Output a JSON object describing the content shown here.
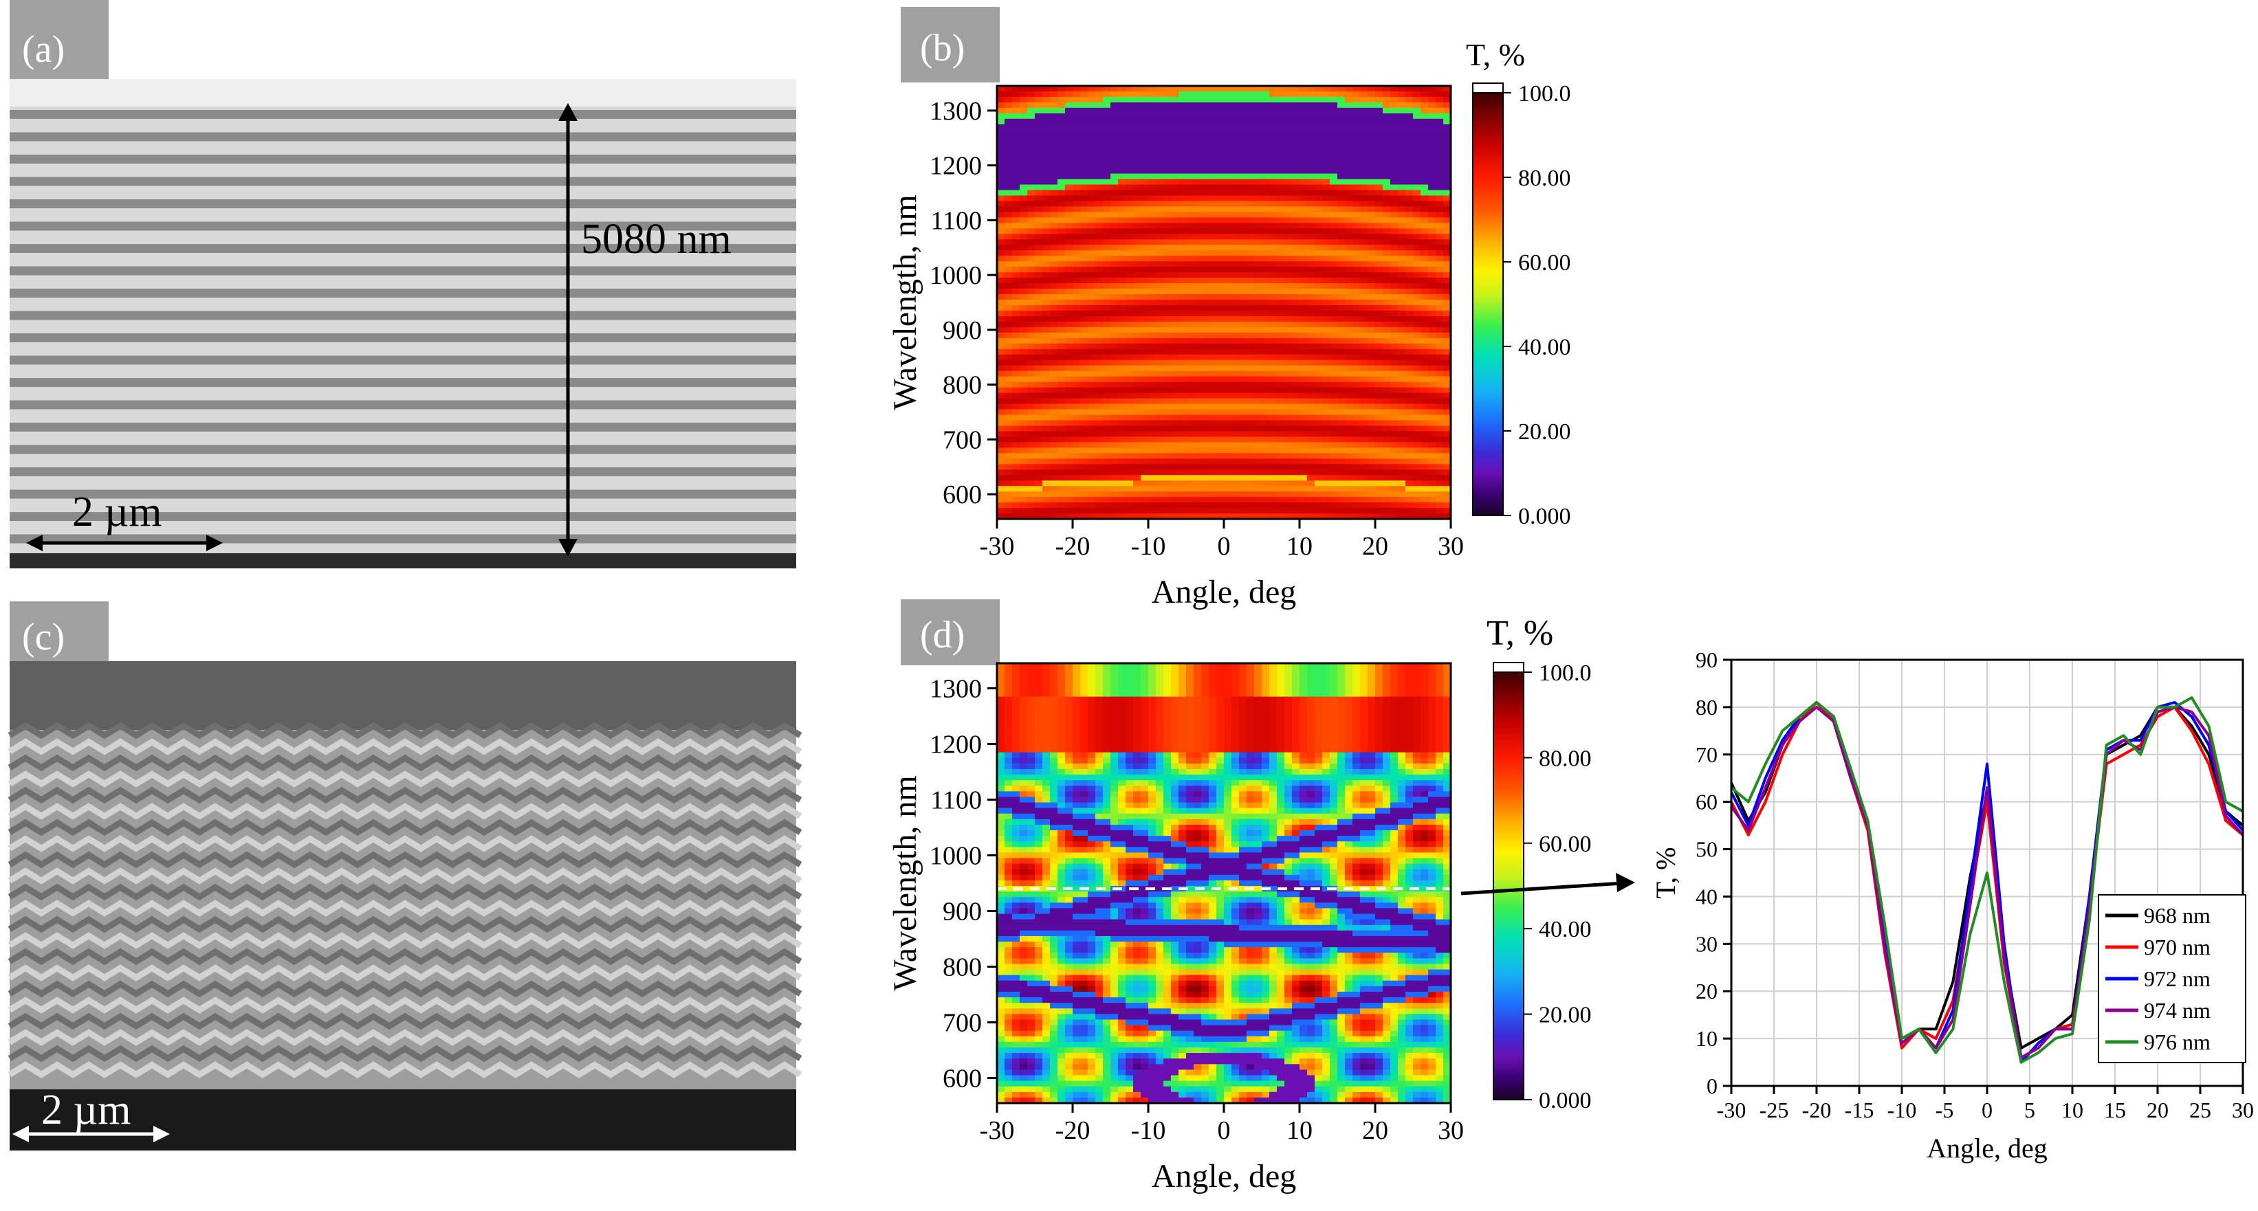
{
  "panels": {
    "a": {
      "label": "(a)",
      "thickness": "5080 nm",
      "scale": "2 µm"
    },
    "b": {
      "label": "(b)"
    },
    "c": {
      "label": "(c)",
      "scale": "2 µm"
    },
    "d": {
      "label": "(d)"
    }
  },
  "colormap": {
    "stops": [
      [
        0.0,
        "#1a0326"
      ],
      [
        0.05,
        "#3b0073"
      ],
      [
        0.1,
        "#6a10b5"
      ],
      [
        0.15,
        "#3b2bd6"
      ],
      [
        0.22,
        "#1e6cff"
      ],
      [
        0.3,
        "#14b7f0"
      ],
      [
        0.38,
        "#00e2b2"
      ],
      [
        0.45,
        "#3aef4e"
      ],
      [
        0.52,
        "#c6f21a"
      ],
      [
        0.58,
        "#fff200"
      ],
      [
        0.65,
        "#ffae00"
      ],
      [
        0.72,
        "#ff5a00"
      ],
      [
        0.8,
        "#ff1a00"
      ],
      [
        0.88,
        "#c80000"
      ],
      [
        0.95,
        "#7a0000"
      ],
      [
        1.0,
        "#3d0000"
      ]
    ]
  },
  "chart_data": [
    {
      "id": "b",
      "type": "heatmap",
      "title": "",
      "xlabel": "Angle, deg",
      "ylabel": "Wavelength, nm",
      "xlim": [
        -30,
        30
      ],
      "ylim": [
        555,
        1345
      ],
      "xticks": [
        -30,
        -20,
        -10,
        0,
        10,
        20,
        30
      ],
      "yticks": [
        600,
        700,
        800,
        900,
        1000,
        1100,
        1200,
        1300
      ],
      "colorbar": {
        "title": "T, %",
        "range": [
          0,
          100
        ],
        "ticks": [
          "0.000",
          "20.00",
          "40.00",
          "60.00",
          "80.00",
          "100.0"
        ]
      },
      "features": {
        "stopband_nm": [
          1190,
          1320
        ],
        "band_shift_nm_at_30deg": 42
      }
    },
    {
      "id": "d",
      "type": "heatmap",
      "title": "",
      "xlabel": "Angle, deg",
      "ylabel": "Wavelength, nm",
      "xlim": [
        -30,
        30
      ],
      "ylim": [
        555,
        1345
      ],
      "xticks": [
        -30,
        -20,
        -10,
        0,
        10,
        20,
        30
      ],
      "yticks": [
        600,
        700,
        800,
        900,
        1000,
        1100,
        1200,
        1300
      ],
      "colorbar": {
        "title": "T, %",
        "range": [
          0,
          100
        ],
        "ticks": [
          "0.000",
          "20.00",
          "40.00",
          "60.00",
          "80.00",
          "100.0"
        ]
      },
      "cut_wavelength_nm": 940,
      "bands": [
        {
          "from": [
            -30,
            1100
          ],
          "to": [
            30,
            860
          ]
        },
        {
          "from": [
            -30,
            860
          ],
          "to": [
            30,
            1100
          ]
        },
        {
          "from": [
            -30,
            880
          ],
          "to": [
            30,
            840
          ]
        },
        {
          "from": [
            -30,
            770
          ],
          "to": [
            0,
            680
          ]
        },
        {
          "from": [
            0,
            680
          ],
          "to": [
            30,
            780
          ]
        }
      ]
    },
    {
      "id": "cut",
      "type": "line",
      "title": "",
      "xlabel": "Angle, deg",
      "ylabel": "T, %",
      "xlim": [
        -30,
        30
      ],
      "ylim": [
        0,
        90
      ],
      "xticks": [
        -30,
        -25,
        -20,
        -15,
        -10,
        -5,
        0,
        5,
        10,
        15,
        20,
        25,
        30
      ],
      "yticks": [
        0,
        10,
        20,
        30,
        40,
        50,
        60,
        70,
        80,
        90
      ],
      "x": [
        -30,
        -28,
        -26,
        -24,
        -22,
        -20,
        -18,
        -16,
        -14,
        -12,
        -10,
        -8,
        -6,
        -4,
        -2,
        0,
        2,
        4,
        6,
        8,
        10,
        12,
        14,
        16,
        18,
        20,
        22,
        24,
        26,
        28,
        30
      ],
      "series": [
        {
          "name": "968 nm",
          "color": "#000000",
          "values": [
            64,
            56,
            62,
            72,
            78,
            81,
            78,
            66,
            55,
            30,
            10,
            12,
            12,
            22,
            44,
            62,
            28,
            8,
            10,
            12,
            15,
            40,
            70,
            72,
            74,
            80,
            80,
            76,
            70,
            58,
            55
          ]
        },
        {
          "name": "970 nm",
          "color": "#ff0000",
          "values": [
            60,
            53,
            60,
            70,
            77,
            81,
            77,
            65,
            54,
            28,
            8,
            12,
            10,
            18,
            40,
            60,
            26,
            6,
            8,
            12,
            13,
            38,
            68,
            70,
            72,
            78,
            80,
            75,
            68,
            56,
            53
          ]
        },
        {
          "name": "972 nm",
          "color": "#0000ff",
          "values": [
            62,
            55,
            65,
            73,
            78,
            81,
            78,
            66,
            56,
            30,
            9,
            12,
            8,
            16,
            42,
            68,
            30,
            5,
            9,
            12,
            12,
            40,
            71,
            73,
            73,
            80,
            81,
            78,
            72,
            58,
            54
          ]
        },
        {
          "name": "974 nm",
          "color": "#8b008b",
          "values": [
            59,
            54,
            63,
            72,
            77,
            80,
            77,
            65,
            55,
            29,
            9,
            12,
            8,
            14,
            38,
            63,
            27,
            6,
            8,
            12,
            12,
            38,
            70,
            73,
            71,
            79,
            80,
            79,
            74,
            57,
            53
          ]
        },
        {
          "name": "976 nm",
          "color": "#228b22",
          "values": [
            63,
            60,
            68,
            75,
            78,
            81,
            78,
            67,
            56,
            34,
            10,
            12,
            7,
            12,
            32,
            45,
            22,
            5,
            7,
            10,
            11,
            35,
            72,
            74,
            70,
            80,
            80,
            82,
            76,
            60,
            58
          ]
        }
      ],
      "legend_position": "bottom-right"
    }
  ]
}
